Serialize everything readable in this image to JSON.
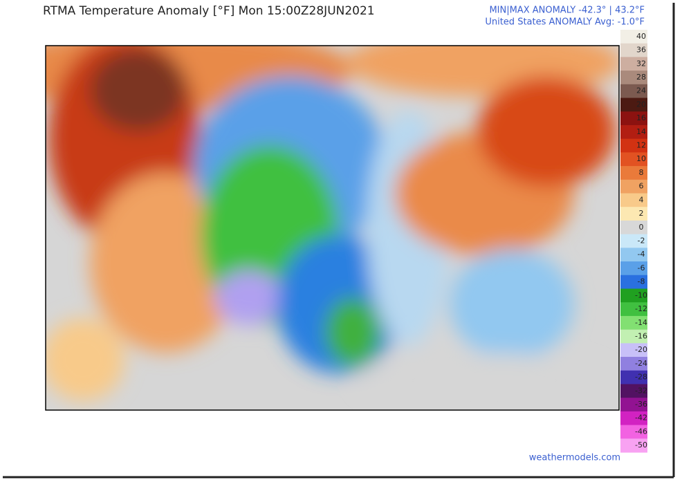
{
  "header": {
    "title": "RTMA Temperature Anomaly [°F]  Mon 15:00Z28JUN2021",
    "minmax": "MIN|MAX ANOMALY -42.3° | 43.2°F",
    "average": "United States ANOMALY Avg: -1.0°F"
  },
  "colorbar": {
    "levels": [
      {
        "value": 40,
        "color": "#f2efe6"
      },
      {
        "value": 36,
        "color": "#e2d6cb"
      },
      {
        "value": 32,
        "color": "#cdaea0"
      },
      {
        "value": 28,
        "color": "#aa8a7c"
      },
      {
        "value": 24,
        "color": "#7c5a50"
      },
      {
        "value": 20,
        "color": "#4c1a12"
      },
      {
        "value": 16,
        "color": "#8c1210"
      },
      {
        "value": 14,
        "color": "#b21e12"
      },
      {
        "value": 12,
        "color": "#d23212"
      },
      {
        "value": 10,
        "color": "#e25222"
      },
      {
        "value": 8,
        "color": "#ea7a3a"
      },
      {
        "value": 6,
        "color": "#f0a262"
      },
      {
        "value": 4,
        "color": "#f8ca8a"
      },
      {
        "value": 2,
        "color": "#fce8b2"
      },
      {
        "value": 0,
        "color": "#d8d8d8"
      },
      {
        "value": -2,
        "color": "#cae8f8"
      },
      {
        "value": -4,
        "color": "#92c8f0"
      },
      {
        "value": -6,
        "color": "#5aa0e8"
      },
      {
        "value": -8,
        "color": "#2a70e0"
      },
      {
        "value": -10,
        "color": "#20a020"
      },
      {
        "value": -12,
        "color": "#40c040"
      },
      {
        "value": -14,
        "color": "#82e072"
      },
      {
        "value": -16,
        "color": "#c2f0b2"
      },
      {
        "value": -20,
        "color": "#c8c0f8"
      },
      {
        "value": -24,
        "color": "#9080e0"
      },
      {
        "value": -28,
        "color": "#4030b0"
      },
      {
        "value": -32,
        "color": "#521262"
      },
      {
        "value": -36,
        "color": "#921292"
      },
      {
        "value": -42,
        "color": "#d222c2"
      },
      {
        "value": -46,
        "color": "#f262e2"
      },
      {
        "value": -50,
        "color": "#f8a2f2"
      }
    ]
  },
  "footer": {
    "source": "weathermodels.com"
  }
}
